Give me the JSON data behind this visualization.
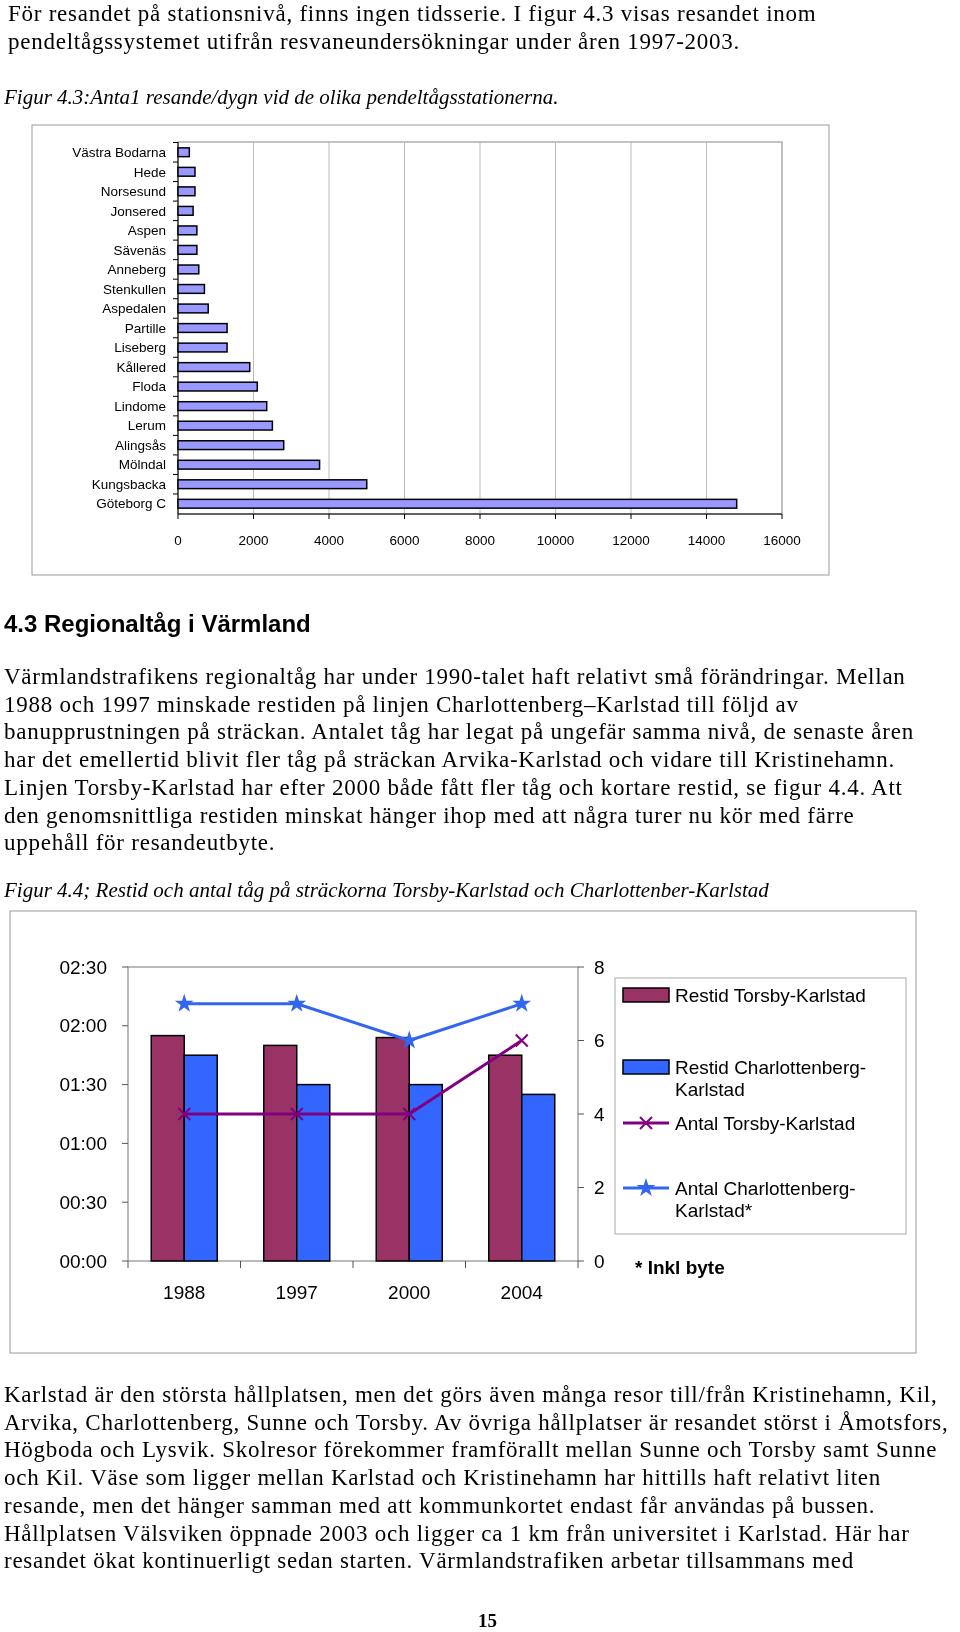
{
  "chart_data": [
    {
      "type": "bar",
      "orientation": "horizontal",
      "title": "Figur 4.3:Anta1 resande/dygn vid de olika pendeltågsstationerna.",
      "annotations": [
        "För resandet på stationsnivå, finns ingen tidsserie. I figur 4.3 visas resandet inom pendeltågssystemet utifrån resvaneundersökningar under åren 1997-2003.",
        "4.3 Regionaltåg i Värmland",
        "Värmlandstrafikens regionaltåg har under 1990-talet haft relativt små förändringar. Mellan 1988 och 1997 minskade restiden på linjen Charlottenberg–Karlstad till följd av banupprustningen på sträckan. Antalet tåg har legat på ungefär samma nivå, de senaste åren har det emellertid blivit fler tåg på sträckan Arvika-Karlstad och vidare till Kristinehamn. Linjen Torsby-Karlstad har efter 2000 både fått fler tåg och kortare restid, se figur 4.4. Att den genomsnittliga restiden minskat hänger ihop med att några turer nu kör med färre uppehåll för resandeutbyte."
      ],
      "categories": [
        "Västra Bodarna",
        "Hede",
        "Norsesund",
        "Jonsered",
        "Aspen",
        "Sävenäs",
        "Anneberg",
        "Stenkullen",
        "Aspedalen",
        "Partille",
        "Liseberg",
        "Kållered",
        "Floda",
        "Lindome",
        "Lerum",
        "Alingsås",
        "Mölndal",
        "Kungsbacka",
        "Göteborg C"
      ],
      "values": [
        300,
        450,
        450,
        400,
        500,
        500,
        550,
        700,
        800,
        1300,
        1300,
        1900,
        2100,
        2350,
        2500,
        2800,
        3750,
        5000,
        14800
      ],
      "color": "#9999ff",
      "xlim": [
        0,
        16000
      ],
      "xticks": [
        0,
        2000,
        4000,
        6000,
        8000,
        10000,
        12000,
        14000,
        16000
      ],
      "grid": "x"
    },
    {
      "type": "bar",
      "title": "Figur 4.4; Restid och antal tåg på sträckorna Torsby-Karlstad och Charlottenber-Karlstad",
      "annotations": [
        "* Inkl byte",
        "Karlstad är den största hållplatsen, men det görs även många resor till/från Kristinehamn, Kil, Arvika, Charlottenberg, Sunne och Torsby. Av övriga hållplatser är resandet störst i Åmotsfors, Högboda och Lysvik. Skolresor förekommer framförallt mellan Sunne och Torsby samt Sunne och Kil. Väse som ligger mellan Karlstad och Kristinehamn har hittills haft relativt liten resande, men det hänger samman med att kommunkortet endast får användas på bussen. Hållplatsen Välsviken öppnade 2003 och ligger ca 1 km från universitet i Karlstad. Här har resandet ökat kontinuerligt sedan starten. Värmlandstrafiken arbetar tillsammans med",
        "15"
      ],
      "categories": [
        "1988",
        "1997",
        "2000",
        "2004"
      ],
      "series": [
        {
          "name": "Restid Torsby-Karlstad",
          "type": "bar",
          "color": "#993366",
          "values": [
            115,
            110,
            114,
            105
          ]
        },
        {
          "name": "Restid Charlottenberg-Karlstad",
          "type": "bar",
          "color": "#3366ff",
          "values": [
            105,
            90,
            90,
            85
          ]
        },
        {
          "name": "Antal Torsby-Karlstad",
          "type": "line",
          "axis": "y2",
          "marker": "cross",
          "color": "#800080",
          "values": [
            4,
            4,
            4,
            6
          ]
        },
        {
          "name": "Antal Charlottenberg-Karlstad*",
          "type": "line",
          "axis": "y2",
          "marker": "star",
          "color": "#3366ee",
          "values": [
            7,
            7,
            6,
            7
          ]
        }
      ],
      "ylim": [
        0,
        150
      ],
      "yticks": [
        {
          "value": 0,
          "label": "00:00"
        },
        {
          "value": 30,
          "label": "00:30"
        },
        {
          "value": 60,
          "label": "01:00"
        },
        {
          "value": 90,
          "label": "01:30"
        },
        {
          "value": 120,
          "label": "02:00"
        },
        {
          "value": 150,
          "label": "02:30"
        }
      ],
      "y2lim": [
        0,
        8
      ],
      "y2ticks": [
        0,
        2,
        4,
        6,
        8
      ],
      "legend": "right"
    }
  ]
}
